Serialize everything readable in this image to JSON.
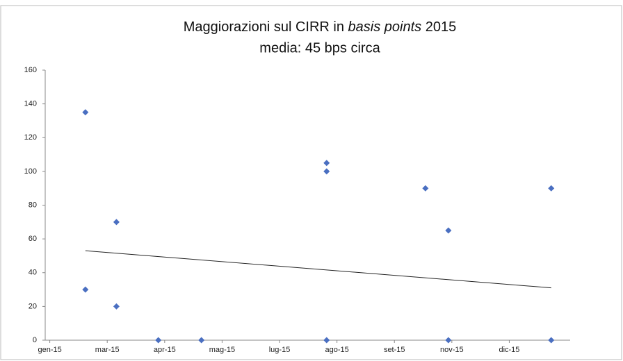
{
  "chart_data": {
    "type": "scatter",
    "title_parts": [
      "Maggiorazioni sul CIRR in ",
      "basis points",
      " 2015"
    ],
    "subtitle": "media: 45 bps circa",
    "x": [
      0.62,
      0.62,
      1.16,
      1.16,
      1.89,
      2.64,
      4.82,
      4.82,
      4.82,
      6.54,
      6.94,
      6.94,
      8.73,
      8.73
    ],
    "values": [
      135,
      30,
      70,
      20,
      0,
      0,
      105,
      100,
      0,
      90,
      65,
      0,
      90,
      0
    ],
    "color": "#4a6fc1",
    "trendline": {
      "x": [
        0.62,
        8.73
      ],
      "y": [
        53,
        31
      ],
      "color": "#222"
    },
    "xlim": [
      -0.08,
      9.06
    ],
    "xticks": [
      {
        "value": 0,
        "label": "gen-15"
      },
      {
        "value": 1,
        "label": "mar-15"
      },
      {
        "value": 2,
        "label": "apr-15"
      },
      {
        "value": 3,
        "label": "mag-15"
      },
      {
        "value": 4,
        "label": "lug-15"
      },
      {
        "value": 5,
        "label": "ago-15"
      },
      {
        "value": 6,
        "label": "set-15"
      },
      {
        "value": 7,
        "label": "nov-15"
      },
      {
        "value": 8,
        "label": "dic-15"
      }
    ],
    "ylim": [
      0,
      160
    ],
    "yticks": [
      0,
      20,
      40,
      60,
      80,
      100,
      120,
      140,
      160
    ]
  }
}
